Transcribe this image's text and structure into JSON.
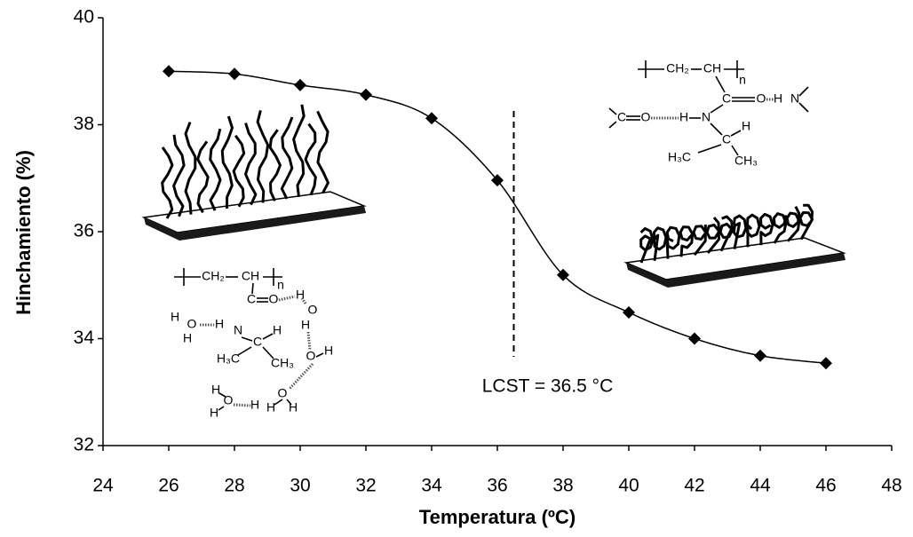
{
  "chart_data": {
    "type": "line",
    "x_label": "Temperatura  (ºC)",
    "y_label": "Hinchamiento  (%)",
    "x": [
      26,
      28,
      30,
      32,
      34,
      36,
      38,
      40,
      42,
      44,
      46
    ],
    "series": [
      {
        "color": "#000000",
        "marker": "diamond",
        "values": [
          39.0,
          38.95,
          38.74,
          38.56,
          38.12,
          36.96,
          35.19,
          34.49,
          34.0,
          33.68,
          33.54
        ]
      }
    ],
    "xlim": [
      24,
      48
    ],
    "xticks": [
      24,
      26,
      28,
      30,
      32,
      34,
      36,
      38,
      40,
      42,
      44,
      46,
      48
    ],
    "ylim": [
      32,
      40
    ],
    "yticks": [
      32,
      34,
      36,
      38,
      40
    ],
    "grid": false,
    "vline": {
      "x": 36.5,
      "label": "LCST = 36.5 °C"
    },
    "structure_top": [
      "CH₂",
      "CH",
      "n",
      "C",
      "O",
      "H",
      "N",
      "C",
      "O",
      "H",
      "N",
      "C",
      "H",
      "H₃C",
      "CH₃"
    ],
    "structure_bottom": [
      "CH₂",
      "CH",
      "n",
      "C",
      "O",
      "H",
      "O",
      "H",
      "H",
      "O",
      "H",
      "H",
      "N",
      "C",
      "H",
      "H₃C",
      "CH₃",
      "O",
      "H",
      "O",
      "H",
      "H",
      "H",
      "O",
      "H",
      "H"
    ]
  }
}
